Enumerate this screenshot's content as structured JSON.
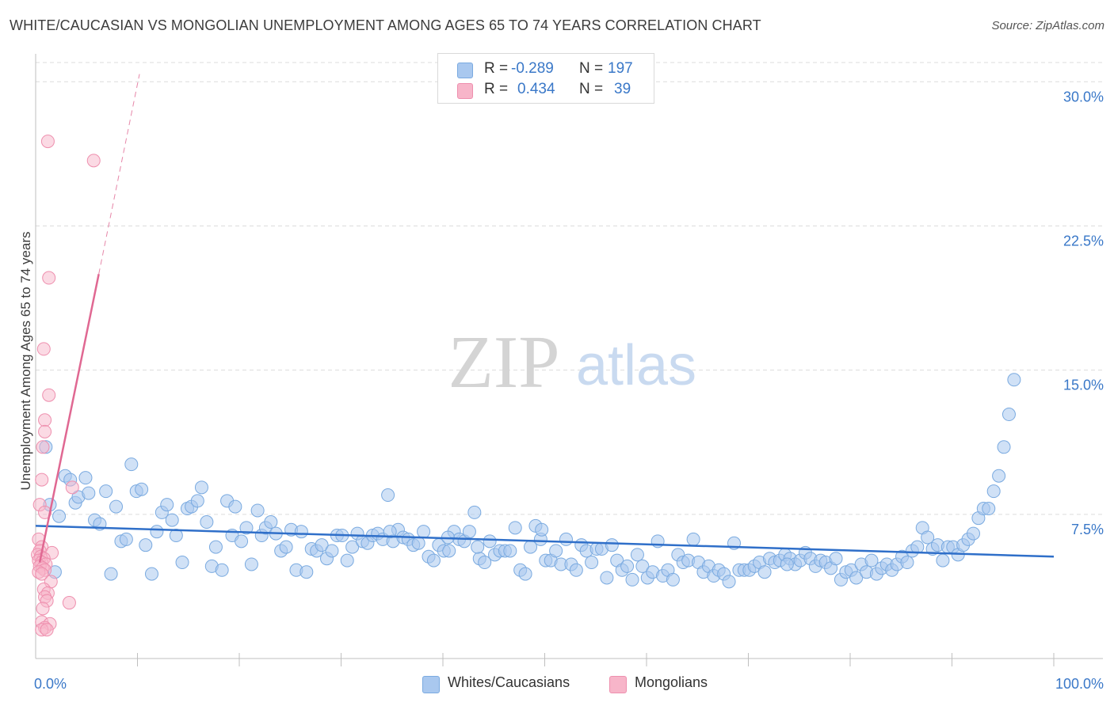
{
  "title": "WHITE/CAUCASIAN VS MONGOLIAN UNEMPLOYMENT AMONG AGES 65 TO 74 YEARS CORRELATION CHART",
  "source": "Source: ZipAtlas.com",
  "watermark": {
    "zip": "ZIP",
    "atlas": "atlas"
  },
  "stats": {
    "row1": {
      "r_label": "R =",
      "r_value": "-0.289",
      "n_label": "N =",
      "n_value": "197"
    },
    "row2": {
      "r_label": "R =",
      "r_value": "0.434",
      "n_label": "N =",
      "n_value": "39"
    }
  },
  "legend": {
    "whites": "Whites/Caucasians",
    "mongolians": "Mongolians"
  },
  "colors": {
    "blue_fill": "#a9c8ef",
    "blue_stroke": "#7aaae0",
    "blue_line": "#2f6fc9",
    "pink_fill": "#f7b5c9",
    "pink_stroke": "#ee8fae",
    "pink_line": "#e06892",
    "axis_text": "#3a78c8",
    "grid": "#dcdcdc"
  },
  "chart_data": {
    "type": "scatter",
    "title": "WHITE/CAUCASIAN VS MONGOLIAN UNEMPLOYMENT AMONG AGES 65 TO 74 YEARS CORRELATION CHART",
    "xlabel": "",
    "ylabel": "Unemployment Among Ages 65 to 74 years",
    "xlim": [
      0,
      100
    ],
    "ylim": [
      0,
      31
    ],
    "x_tick_labels": [
      "0.0%",
      "100.0%"
    ],
    "y_ticks": [
      7.5,
      15.0,
      22.5,
      30.0
    ],
    "y_tick_labels": [
      "7.5%",
      "15.0%",
      "22.5%",
      "30.0%"
    ],
    "series": [
      {
        "name": "Whites/Caucasians",
        "r": -0.289,
        "n": 197,
        "trendline": {
          "x": [
            0,
            100
          ],
          "y": [
            6.9,
            5.3
          ]
        },
        "points": [
          [
            1.0,
            11.0
          ],
          [
            1.4,
            8.0
          ],
          [
            1.9,
            4.5
          ],
          [
            2.3,
            7.4
          ],
          [
            2.9,
            9.5
          ],
          [
            3.4,
            9.3
          ],
          [
            3.9,
            8.1
          ],
          [
            4.2,
            8.4
          ],
          [
            4.9,
            9.4
          ],
          [
            5.2,
            8.6
          ],
          [
            5.8,
            7.2
          ],
          [
            6.3,
            7.0
          ],
          [
            6.9,
            8.7
          ],
          [
            7.4,
            4.4
          ],
          [
            7.9,
            7.9
          ],
          [
            8.4,
            6.1
          ],
          [
            8.9,
            6.2
          ],
          [
            9.4,
            10.1
          ],
          [
            9.9,
            8.7
          ],
          [
            10.4,
            8.8
          ],
          [
            10.8,
            5.9
          ],
          [
            11.4,
            4.4
          ],
          [
            11.9,
            6.6
          ],
          [
            12.4,
            7.6
          ],
          [
            12.9,
            8.0
          ],
          [
            13.4,
            7.2
          ],
          [
            13.8,
            6.4
          ],
          [
            14.4,
            5.0
          ],
          [
            14.9,
            7.8
          ],
          [
            15.3,
            7.9
          ],
          [
            15.9,
            8.2
          ],
          [
            16.3,
            8.9
          ],
          [
            16.8,
            7.1
          ],
          [
            17.3,
            4.8
          ],
          [
            17.7,
            5.8
          ],
          [
            18.3,
            4.6
          ],
          [
            18.8,
            8.2
          ],
          [
            19.3,
            6.4
          ],
          [
            19.6,
            7.9
          ],
          [
            20.2,
            6.1
          ],
          [
            20.7,
            6.8
          ],
          [
            21.2,
            4.9
          ],
          [
            21.8,
            7.7
          ],
          [
            22.2,
            6.4
          ],
          [
            22.6,
            6.8
          ],
          [
            23.1,
            7.1
          ],
          [
            23.6,
            6.5
          ],
          [
            24.1,
            5.6
          ],
          [
            24.6,
            5.8
          ],
          [
            25.1,
            6.7
          ],
          [
            25.6,
            4.6
          ],
          [
            26.1,
            6.6
          ],
          [
            26.6,
            4.5
          ],
          [
            27.1,
            5.7
          ],
          [
            27.6,
            5.6
          ],
          [
            28.1,
            5.9
          ],
          [
            28.6,
            5.2
          ],
          [
            29.1,
            5.6
          ],
          [
            29.6,
            6.4
          ],
          [
            30.1,
            6.4
          ],
          [
            30.6,
            5.1
          ],
          [
            31.1,
            5.8
          ],
          [
            31.6,
            6.5
          ],
          [
            32.1,
            6.1
          ],
          [
            32.6,
            6.0
          ],
          [
            33.1,
            6.4
          ],
          [
            33.6,
            6.5
          ],
          [
            34.1,
            6.2
          ],
          [
            34.6,
            8.5
          ],
          [
            35.1,
            6.1
          ],
          [
            35.6,
            6.7
          ],
          [
            36.1,
            6.3
          ],
          [
            36.6,
            6.2
          ],
          [
            37.1,
            5.9
          ],
          [
            37.6,
            6.0
          ],
          [
            38.1,
            6.6
          ],
          [
            38.6,
            5.3
          ],
          [
            39.1,
            5.1
          ],
          [
            39.6,
            5.9
          ],
          [
            40.1,
            5.6
          ],
          [
            40.6,
            5.6
          ],
          [
            41.1,
            6.6
          ],
          [
            41.6,
            6.2
          ],
          [
            42.1,
            6.1
          ],
          [
            42.6,
            6.6
          ],
          [
            43.1,
            7.6
          ],
          [
            43.6,
            5.2
          ],
          [
            44.1,
            5.0
          ],
          [
            44.6,
            6.1
          ],
          [
            45.1,
            5.4
          ],
          [
            45.6,
            5.6
          ],
          [
            46.1,
            5.6
          ],
          [
            46.6,
            5.6
          ],
          [
            47.1,
            6.8
          ],
          [
            47.6,
            4.6
          ],
          [
            48.1,
            4.4
          ],
          [
            48.6,
            5.8
          ],
          [
            49.1,
            6.9
          ],
          [
            49.6,
            6.2
          ],
          [
            50.1,
            5.1
          ],
          [
            50.6,
            5.1
          ],
          [
            51.1,
            5.6
          ],
          [
            51.6,
            4.9
          ],
          [
            52.1,
            6.2
          ],
          [
            52.6,
            4.9
          ],
          [
            53.1,
            4.6
          ],
          [
            53.6,
            5.9
          ],
          [
            54.1,
            5.6
          ],
          [
            54.6,
            5.0
          ],
          [
            55.1,
            5.7
          ],
          [
            55.6,
            5.7
          ],
          [
            56.1,
            4.2
          ],
          [
            56.6,
            5.9
          ],
          [
            57.1,
            5.1
          ],
          [
            57.6,
            4.6
          ],
          [
            58.1,
            4.8
          ],
          [
            58.6,
            4.1
          ],
          [
            59.1,
            5.4
          ],
          [
            59.6,
            4.8
          ],
          [
            60.1,
            4.2
          ],
          [
            60.6,
            4.5
          ],
          [
            61.1,
            6.1
          ],
          [
            61.6,
            4.3
          ],
          [
            62.1,
            4.6
          ],
          [
            62.6,
            4.1
          ],
          [
            63.1,
            5.4
          ],
          [
            63.6,
            5.0
          ],
          [
            64.1,
            5.1
          ],
          [
            64.6,
            6.2
          ],
          [
            65.1,
            5.0
          ],
          [
            65.6,
            4.5
          ],
          [
            66.1,
            4.8
          ],
          [
            66.6,
            4.3
          ],
          [
            67.1,
            4.6
          ],
          [
            67.6,
            4.4
          ],
          [
            68.1,
            4.0
          ],
          [
            68.6,
            6.0
          ],
          [
            69.1,
            4.6
          ],
          [
            69.6,
            4.6
          ],
          [
            70.1,
            4.6
          ],
          [
            70.6,
            4.8
          ],
          [
            71.1,
            5.0
          ],
          [
            71.6,
            4.5
          ],
          [
            72.1,
            5.2
          ],
          [
            72.6,
            5.0
          ],
          [
            73.1,
            5.1
          ],
          [
            73.6,
            5.4
          ],
          [
            74.1,
            5.2
          ],
          [
            74.6,
            4.9
          ],
          [
            75.1,
            5.1
          ],
          [
            75.6,
            5.5
          ],
          [
            76.1,
            5.2
          ],
          [
            76.6,
            4.8
          ],
          [
            77.1,
            5.1
          ],
          [
            77.6,
            5.0
          ],
          [
            78.1,
            4.7
          ],
          [
            78.6,
            5.2
          ],
          [
            79.1,
            4.1
          ],
          [
            79.6,
            4.5
          ],
          [
            80.1,
            4.6
          ],
          [
            80.6,
            4.2
          ],
          [
            81.1,
            4.9
          ],
          [
            81.6,
            4.5
          ],
          [
            82.1,
            5.1
          ],
          [
            82.6,
            4.4
          ],
          [
            83.1,
            4.7
          ],
          [
            83.6,
            4.9
          ],
          [
            84.1,
            4.6
          ],
          [
            84.6,
            4.9
          ],
          [
            85.1,
            5.3
          ],
          [
            85.6,
            5.0
          ],
          [
            86.1,
            5.6
          ],
          [
            86.6,
            5.8
          ],
          [
            87.1,
            6.8
          ],
          [
            87.6,
            6.3
          ],
          [
            88.1,
            5.7
          ],
          [
            88.6,
            5.9
          ],
          [
            89.1,
            5.1
          ],
          [
            89.6,
            5.8
          ],
          [
            90.1,
            5.8
          ],
          [
            90.6,
            5.4
          ],
          [
            91.1,
            5.9
          ],
          [
            91.6,
            6.2
          ],
          [
            92.1,
            6.5
          ],
          [
            92.6,
            7.3
          ],
          [
            93.1,
            7.8
          ],
          [
            93.6,
            7.8
          ],
          [
            94.1,
            8.7
          ],
          [
            94.6,
            9.5
          ],
          [
            95.1,
            11.0
          ],
          [
            95.6,
            12.7
          ],
          [
            96.1,
            14.5
          ],
          [
            34.8,
            6.6
          ],
          [
            49.7,
            6.7
          ],
          [
            40.5,
            6.3
          ],
          [
            73.8,
            4.9
          ],
          [
            43.4,
            5.8
          ]
        ]
      },
      {
        "name": "Mongolians",
        "r": 0.434,
        "n": 39,
        "trendline": {
          "x": [
            0.4,
            6.2
          ],
          "y": [
            5.0,
            20.0
          ]
        },
        "trendline_extension": {
          "x": [
            6.2,
            10.2
          ],
          "y": [
            20.0,
            30.4
          ]
        },
        "points": [
          [
            1.2,
            26.9
          ],
          [
            5.7,
            25.9
          ],
          [
            1.3,
            19.8
          ],
          [
            0.8,
            16.1
          ],
          [
            1.3,
            13.7
          ],
          [
            0.9,
            12.4
          ],
          [
            0.9,
            11.8
          ],
          [
            0.7,
            11.0
          ],
          [
            0.6,
            9.3
          ],
          [
            3.6,
            8.9
          ],
          [
            0.4,
            8.0
          ],
          [
            0.9,
            7.6
          ],
          [
            0.3,
            6.2
          ],
          [
            0.6,
            5.8
          ],
          [
            0.4,
            5.6
          ],
          [
            1.6,
            5.5
          ],
          [
            0.2,
            5.4
          ],
          [
            0.5,
            5.3
          ],
          [
            0.8,
            5.2
          ],
          [
            0.3,
            5.1
          ],
          [
            0.6,
            5.0
          ],
          [
            1.0,
            4.9
          ],
          [
            0.4,
            4.8
          ],
          [
            0.7,
            4.7
          ],
          [
            0.9,
            4.6
          ],
          [
            0.3,
            4.5
          ],
          [
            0.6,
            4.4
          ],
          [
            1.5,
            4.0
          ],
          [
            0.8,
            3.6
          ],
          [
            1.2,
            3.4
          ],
          [
            0.9,
            3.2
          ],
          [
            1.1,
            3.0
          ],
          [
            3.3,
            2.9
          ],
          [
            0.7,
            2.6
          ],
          [
            0.6,
            1.9
          ],
          [
            1.4,
            1.8
          ],
          [
            0.9,
            1.6
          ],
          [
            0.6,
            1.5
          ],
          [
            1.1,
            1.5
          ]
        ]
      }
    ]
  }
}
